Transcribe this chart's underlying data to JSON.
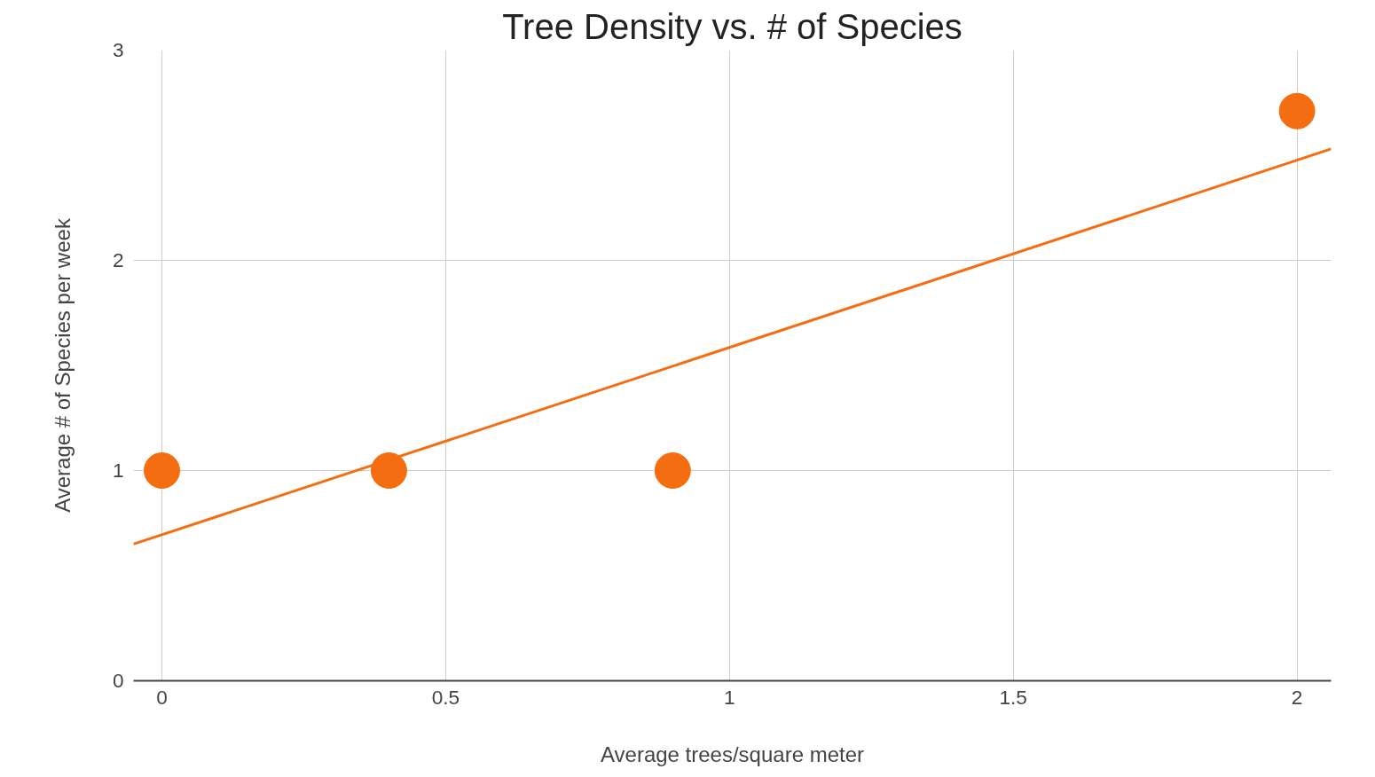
{
  "chart_data": {
    "type": "scatter",
    "title": "Tree Density vs. # of Species",
    "xlabel": "Average trees/square meter",
    "ylabel": "Average # of Species per week",
    "x": [
      0,
      0.4,
      0.9,
      2
    ],
    "series": [
      {
        "color": "#f46d10",
        "marker": "circle",
        "values": [
          1,
          1,
          1,
          2.71
        ]
      },
      {
        "type": "line",
        "color": "#f46d10",
        "marker": "none",
        "x": [
          -0.05,
          2.06
        ],
        "values": [
          0.65,
          2.53
        ]
      }
    ],
    "xlim": [
      -0.05,
      2.06
    ],
    "xticks": [
      0,
      0.5,
      1,
      1.5,
      2
    ],
    "ylim": [
      0,
      3
    ],
    "yticks": [
      0,
      1,
      2,
      3
    ],
    "grid": true
  }
}
